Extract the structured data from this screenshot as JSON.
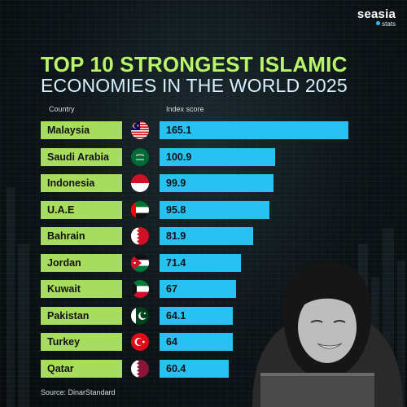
{
  "brand": {
    "name": "seasia",
    "sub": "stats"
  },
  "title": {
    "line1": "TOP 10 STRONGEST ISLAMIC",
    "line2": "ECONOMIES IN THE WORLD 2025"
  },
  "headers": {
    "country": "Country",
    "score": "Index score"
  },
  "source": "Source: DinarStandard",
  "colors": {
    "label_bg": "#a8dc5c",
    "bar": "#28c2f2",
    "title_accent": "#b8f56a"
  },
  "chart_data": {
    "type": "bar",
    "orientation": "horizontal",
    "title": "TOP 10 STRONGEST ISLAMIC ECONOMIES IN THE WORLD 2025",
    "xlabel": "Index score",
    "ylabel": "Country",
    "categories": [
      "Malaysia",
      "Saudi Arabia",
      "Indonesia",
      "U.A.E",
      "Bahrain",
      "Jordan",
      "Kuwait",
      "Pakistan",
      "Turkey",
      "Qatar"
    ],
    "values": [
      165.1,
      100.9,
      99.9,
      95.8,
      81.9,
      71.4,
      67,
      64.1,
      64,
      60.4
    ],
    "value_labels": [
      "165.1",
      "100.9",
      "99.9",
      "95.8",
      "81.9",
      "71.4",
      "67",
      "64.1",
      "64",
      "60.4"
    ],
    "flags": [
      "malaysia-flag-icon",
      "saudi-arabia-flag-icon",
      "indonesia-flag-icon",
      "uae-flag-icon",
      "bahrain-flag-icon",
      "jordan-flag-icon",
      "kuwait-flag-icon",
      "pakistan-flag-icon",
      "turkey-flag-icon",
      "qatar-flag-icon"
    ],
    "xlim": [
      0,
      165.1
    ],
    "grid": false,
    "legend": "none"
  }
}
